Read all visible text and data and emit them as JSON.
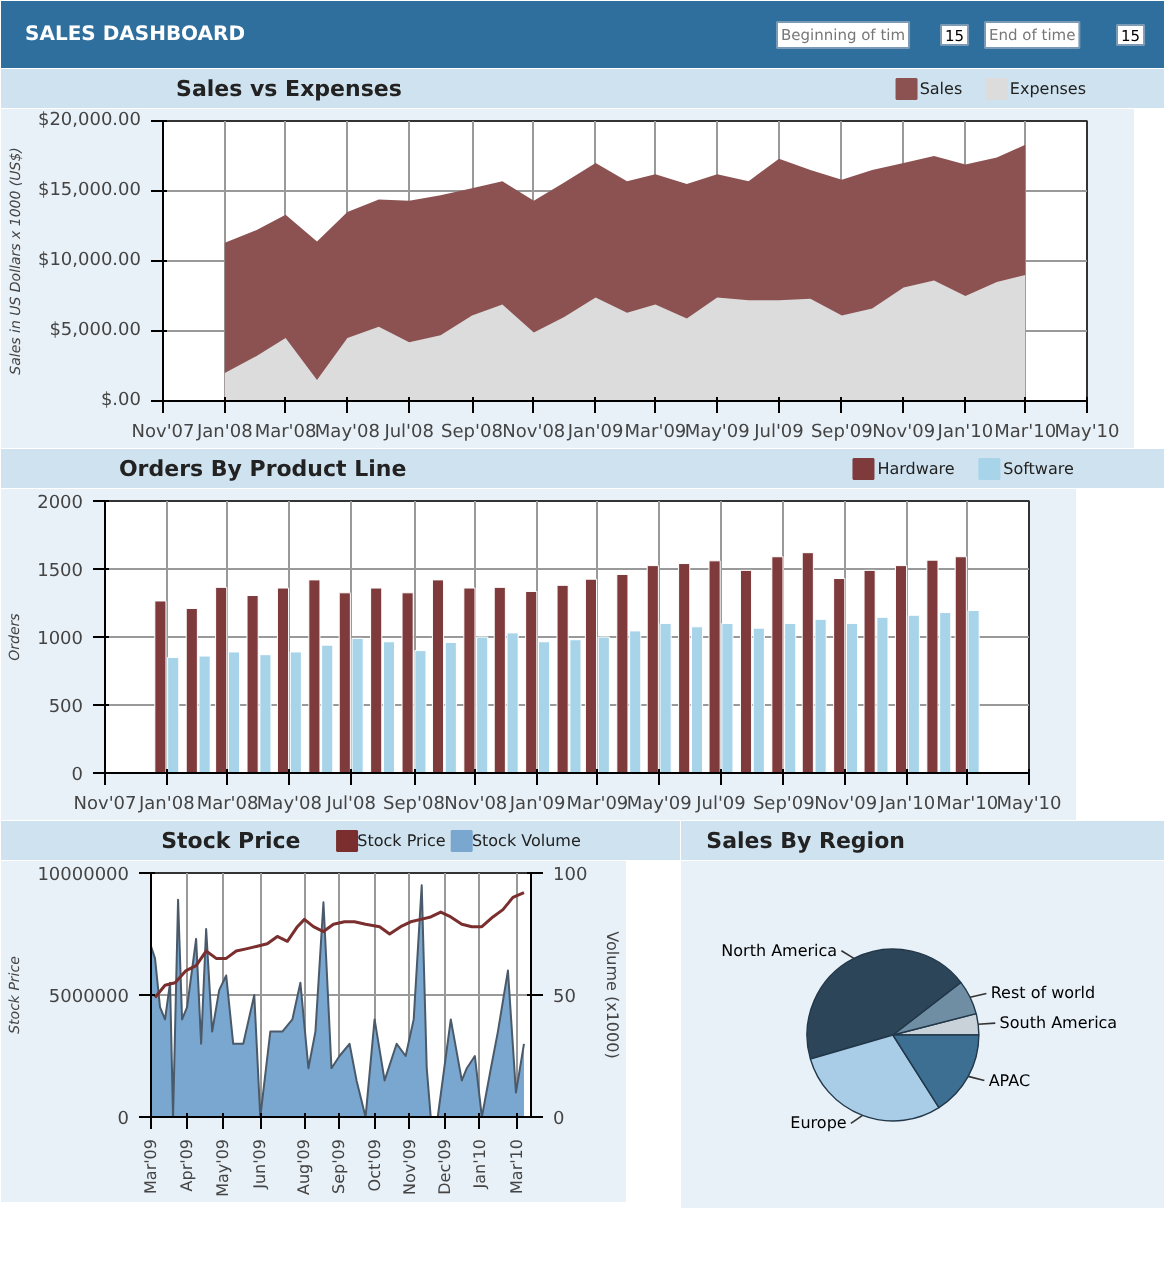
{
  "chart_data": [
    {
      "type": "other",
      "title": "SALES DASHBOARD",
      "annotations": [
        "Beginning of tim",
        "15",
        "End of time",
        "15"
      ]
    },
    {
      "type": "area",
      "title": "Sales vs Expenses",
      "ylabel": "Sales in US Dollars x 1000 (US$)",
      "legend": "top right",
      "grid": true,
      "x": [
        "2008-01",
        "2008-02",
        "2008-03",
        "2008-04",
        "2008-05",
        "2008-06",
        "2008-07",
        "2008-08",
        "2008-09",
        "2008-10",
        "2008-11",
        "2008-12",
        "2009-01",
        "2009-02",
        "2009-03",
        "2009-04",
        "2009-05",
        "2009-06",
        "2009-07",
        "2009-08",
        "2009-09",
        "2009-10",
        "2009-11",
        "2009-12",
        "2010-01",
        "2010-02",
        "2010-03"
      ],
      "series": [
        {
          "name": "Sales",
          "color": "#8c5252",
          "values": [
            11300,
            12200,
            13300,
            11400,
            13500,
            14400,
            14300,
            14700,
            15200,
            15700,
            14300,
            15600,
            17000,
            15700,
            16200,
            15500,
            16200,
            15700,
            17300,
            16500,
            15800,
            16500,
            17000,
            17500,
            16900,
            17400,
            18300
          ]
        },
        {
          "name": "Expenses",
          "color": "#dcdcdc",
          "values": [
            2000,
            3200,
            4500,
            1500,
            4500,
            5300,
            4200,
            4700,
            6100,
            6900,
            4900,
            6000,
            7400,
            6300,
            6900,
            5900,
            7400,
            7200,
            7200,
            7300,
            6100,
            6600,
            8100,
            8600,
            7500,
            8500,
            9000
          ]
        }
      ],
      "xlim": [
        "2007-11",
        "2010-05"
      ],
      "xticks": [
        {
          "value": "2007-11",
          "label": "Nov'07"
        },
        {
          "value": "2008-01",
          "label": "Jan'08"
        },
        {
          "value": "2008-03",
          "label": "Mar'08"
        },
        {
          "value": "2008-05",
          "label": "May'08"
        },
        {
          "value": "2008-07",
          "label": "Jul'08"
        },
        {
          "value": "2008-09",
          "label": "Sep'08"
        },
        {
          "value": "2008-11",
          "label": "Nov'08"
        },
        {
          "value": "2009-01",
          "label": "Jan'09"
        },
        {
          "value": "2009-03",
          "label": "Mar'09"
        },
        {
          "value": "2009-05",
          "label": "May'09"
        },
        {
          "value": "2009-07",
          "label": "Jul'09"
        },
        {
          "value": "2009-09",
          "label": "Sep'09"
        },
        {
          "value": "2009-11",
          "label": "Nov'09"
        },
        {
          "value": "2010-01",
          "label": "Jan'10"
        },
        {
          "value": "2010-03",
          "label": "Mar'10"
        },
        {
          "value": "2010-05",
          "label": "May'10"
        }
      ],
      "ylim": [
        0,
        20000
      ],
      "yticks": [
        {
          "value": 0,
          "label": "$.00"
        },
        {
          "value": 5000,
          "label": "$5,000.00"
        },
        {
          "value": 10000,
          "label": "$10,000.00"
        },
        {
          "value": 15000,
          "label": "$15,000.00"
        },
        {
          "value": 20000,
          "label": "$20,000.00"
        }
      ]
    },
    {
      "type": "bar",
      "title": "Orders By Product Line",
      "ylabel": "Orders",
      "legend": "top right",
      "grid": true,
      "x": [
        "2008-01",
        "2008-02",
        "2008-03",
        "2008-04",
        "2008-05",
        "2008-06",
        "2008-07",
        "2008-08",
        "2008-09",
        "2008-10",
        "2008-11",
        "2008-12",
        "2009-01",
        "2009-02",
        "2009-03",
        "2009-04",
        "2009-05",
        "2009-06",
        "2009-07",
        "2009-08",
        "2009-09",
        "2009-10",
        "2009-11",
        "2009-12",
        "2010-01",
        "2010-02",
        "2010-03"
      ],
      "series": [
        {
          "name": "Hardware",
          "color": "#7f3b3b",
          "values": [
            1265,
            1210,
            1365,
            1305,
            1360,
            1420,
            1325,
            1360,
            1325,
            1420,
            1360,
            1365,
            1335,
            1380,
            1425,
            1460,
            1525,
            1540,
            1560,
            1490,
            1590,
            1620,
            1430,
            1490,
            1525,
            1565,
            1590
          ]
        },
        {
          "name": "Software",
          "color": "#a8d4ea",
          "values": [
            850,
            860,
            890,
            870,
            890,
            940,
            990,
            965,
            900,
            960,
            1000,
            1030,
            965,
            980,
            1000,
            1045,
            1100,
            1075,
            1100,
            1065,
            1100,
            1130,
            1100,
            1145,
            1160,
            1180,
            1195
          ]
        }
      ],
      "xlim": [
        "2007-11",
        "2010-05"
      ],
      "xticks": [
        {
          "value": "2007-11",
          "label": "Nov'07"
        },
        {
          "value": "2008-01",
          "label": "Jan'08"
        },
        {
          "value": "2008-03",
          "label": "Mar'08"
        },
        {
          "value": "2008-05",
          "label": "May'08"
        },
        {
          "value": "2008-07",
          "label": "Jul'08"
        },
        {
          "value": "2008-09",
          "label": "Sep'08"
        },
        {
          "value": "2008-11",
          "label": "Nov'08"
        },
        {
          "value": "2009-01",
          "label": "Jan'09"
        },
        {
          "value": "2009-03",
          "label": "Mar'09"
        },
        {
          "value": "2009-05",
          "label": "May'09"
        },
        {
          "value": "2009-07",
          "label": "Jul'09"
        },
        {
          "value": "2009-09",
          "label": "Sep'09"
        },
        {
          "value": "2009-11",
          "label": "Nov'09"
        },
        {
          "value": "2010-01",
          "label": "Jan'10"
        },
        {
          "value": "2010-03",
          "label": "Mar'10"
        },
        {
          "value": "2010-05",
          "label": "May'10"
        }
      ],
      "ylim": [
        0,
        2000
      ],
      "yticks": [
        0,
        500,
        1000,
        1500,
        2000
      ]
    },
    {
      "type": "line",
      "title": "Stock Price",
      "ylabel": "Stock Price",
      "y2label": "Volume (x1000)",
      "legend": "top right",
      "grid": true,
      "series": [
        {
          "name": "Stock Price",
          "color": "#7a2e2e",
          "x": [
            "2009-03-05",
            "2009-03-15",
            "2009-03-25",
            "2009-04-05",
            "2009-04-15",
            "2009-04-25",
            "2009-05-05",
            "2009-05-15",
            "2009-05-25",
            "2009-06-05",
            "2009-06-15",
            "2009-06-25",
            "2009-07-05",
            "2009-07-15",
            "2009-07-25",
            "2009-08-01",
            "2009-08-10",
            "2009-08-20",
            "2009-08-30",
            "2009-09-10",
            "2009-09-20",
            "2009-10-01",
            "2009-10-15",
            "2009-10-25",
            "2009-11-05",
            "2009-11-15",
            "2009-11-25",
            "2009-12-05",
            "2009-12-15",
            "2009-12-25",
            "2010-01-05",
            "2010-01-15",
            "2010-01-25",
            "2010-02-05",
            "2010-02-15",
            "2010-02-25",
            "2010-03-08"
          ],
          "values": [
            4900000,
            5400000,
            5500000,
            6000000,
            6200000,
            6800000,
            6500000,
            6500000,
            6800000,
            6900000,
            7000000,
            7100000,
            7400000,
            7200000,
            7800000,
            8100000,
            7800000,
            7600000,
            7900000,
            8000000,
            8000000,
            7900000,
            7800000,
            7500000,
            7800000,
            8000000,
            8100000,
            8200000,
            8400000,
            8200000,
            7900000,
            7800000,
            7800000,
            8200000,
            8500000,
            9000000,
            9200000
          ]
        },
        {
          "name": "Stock Volume",
          "type": "area",
          "axis": "y2",
          "color": "#7aa7cf",
          "x": [
            "2009-03-01",
            "2009-03-05",
            "2009-03-10",
            "2009-03-15",
            "2009-03-20",
            "2009-03-23",
            "2009-03-28",
            "2009-04-01",
            "2009-04-06",
            "2009-04-15",
            "2009-04-20",
            "2009-04-25",
            "2009-05-01",
            "2009-05-08",
            "2009-05-15",
            "2009-05-22",
            "2009-06-01",
            "2009-06-12",
            "2009-06-18",
            "2009-06-28",
            "2009-07-10",
            "2009-07-20",
            "2009-07-28",
            "2009-08-05",
            "2009-08-12",
            "2009-08-20",
            "2009-08-28",
            "2009-09-05",
            "2009-09-15",
            "2009-09-22",
            "2009-10-01",
            "2009-10-10",
            "2009-10-20",
            "2009-11-01",
            "2009-11-10",
            "2009-11-18",
            "2009-11-26",
            "2009-12-01",
            "2009-12-05",
            "2009-12-12",
            "2009-12-25",
            "2010-01-05",
            "2010-01-10",
            "2010-01-18",
            "2010-01-25",
            "2010-02-03",
            "2010-02-10",
            "2010-02-20",
            "2010-02-28",
            "2010-03-08"
          ],
          "values": [
            70,
            65,
            45,
            40,
            55,
            0,
            89,
            40,
            45,
            73,
            30,
            77,
            35,
            52,
            58,
            30,
            30,
            50,
            0,
            35,
            35,
            40,
            55,
            20,
            35,
            88,
            20,
            25,
            30,
            15,
            0,
            40,
            15,
            30,
            25,
            40,
            95,
            20,
            0,
            0,
            40,
            15,
            20,
            25,
            0,
            20,
            35,
            60,
            10,
            30
          ]
        }
      ],
      "xlim": [
        "2009-03-01",
        "2010-03-15"
      ],
      "xticks": [
        {
          "value": "2009-03-01",
          "label": "Mar'09"
        },
        {
          "value": "2009-04-06",
          "label": "Apr'09"
        },
        {
          "value": "2009-05-12",
          "label": "May'09"
        },
        {
          "value": "2009-06-18",
          "label": "Jun'09"
        },
        {
          "value": "2009-08-01",
          "label": "Aug'09"
        },
        {
          "value": "2009-09-05",
          "label": "Sep'09"
        },
        {
          "value": "2009-10-10",
          "label": "Oct'09"
        },
        {
          "value": "2009-11-14",
          "label": "Nov'09"
        },
        {
          "value": "2009-12-19",
          "label": "Dec'09"
        },
        {
          "value": "2010-01-23",
          "label": "Jan'10"
        },
        {
          "value": "2010-03-01",
          "label": "Mar'10"
        }
      ],
      "ylim": [
        0,
        10000000
      ],
      "yticks": [
        0,
        5000000,
        10000000
      ],
      "y2lim": [
        0,
        100
      ],
      "y2ticks": [
        0,
        50,
        100
      ]
    },
    {
      "type": "pie",
      "title": "Sales By Region",
      "categories": [
        "South America",
        "Rest of world",
        "North America",
        "Europe",
        "APAC"
      ],
      "values": [
        4,
        6.5,
        44,
        29.5,
        16
      ],
      "colors": [
        "#c8d2d8",
        "#6f8ea3",
        "#2d4558",
        "#a9cde6",
        "#3d6f92"
      ]
    }
  ]
}
